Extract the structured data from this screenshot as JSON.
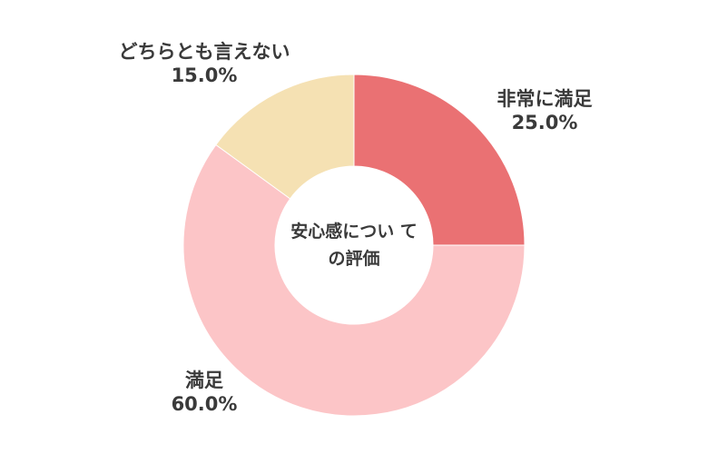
{
  "chart_data": {
    "type": "pie",
    "title": "安心感についての評価",
    "title_lines": [
      "安心感につい て",
      "の評価"
    ],
    "categories": [
      "非常に満足",
      "満足",
      "どちらとも言えない"
    ],
    "values": [
      25.0,
      60.0,
      15.0
    ],
    "value_labels": [
      "25.0%",
      "60.0%",
      "15.0%"
    ],
    "colors": [
      "#ea7173",
      "#fcc5c7",
      "#f5e1b3"
    ],
    "donut": true,
    "start": "12 o'clock",
    "direction": "clockwise",
    "legend": "none"
  }
}
